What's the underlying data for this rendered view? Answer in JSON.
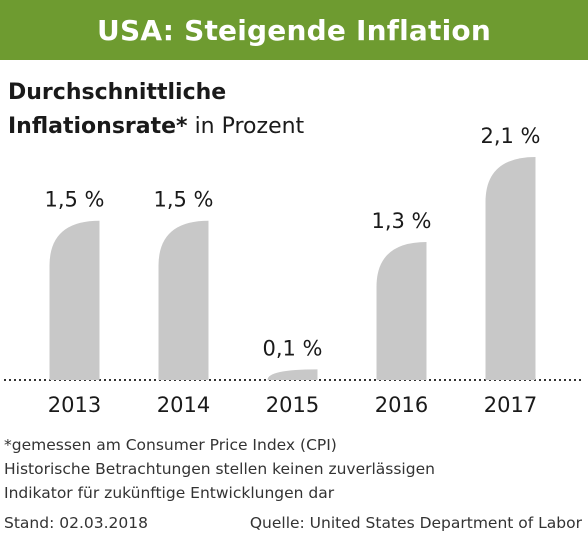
{
  "header": {
    "title": "USA: Steigende Inflation"
  },
  "subtitle": {
    "line1": "Durchschnittliche",
    "line2_bold": "Inflationsrate*",
    "line2_rest": " in Prozent"
  },
  "chart_data": {
    "type": "bar",
    "categories": [
      "2013",
      "2014",
      "2015",
      "2016",
      "2017"
    ],
    "values": [
      1.5,
      1.5,
      0.1,
      1.3,
      2.1
    ],
    "value_labels": [
      "1,5 %",
      "1,5 %",
      "0,1 %",
      "1,3 %",
      "2,1 %"
    ],
    "ylim": [
      0,
      2.1
    ],
    "bar_color": "#c8c8c8",
    "grid": false,
    "legend": "none"
  },
  "footnotes": [
    "*gemessen am Consumer Price Index (CPI)",
    "Historische Betrachtungen stellen keinen zuverlässigen",
    "Indikator für zukünftige Entwicklungen dar"
  ],
  "footer": {
    "date": "Stand: 02.03.2018",
    "source": "Quelle: United States Department of Labor"
  },
  "colors": {
    "accent": "#6e9b30",
    "text": "#1a1a1a"
  }
}
